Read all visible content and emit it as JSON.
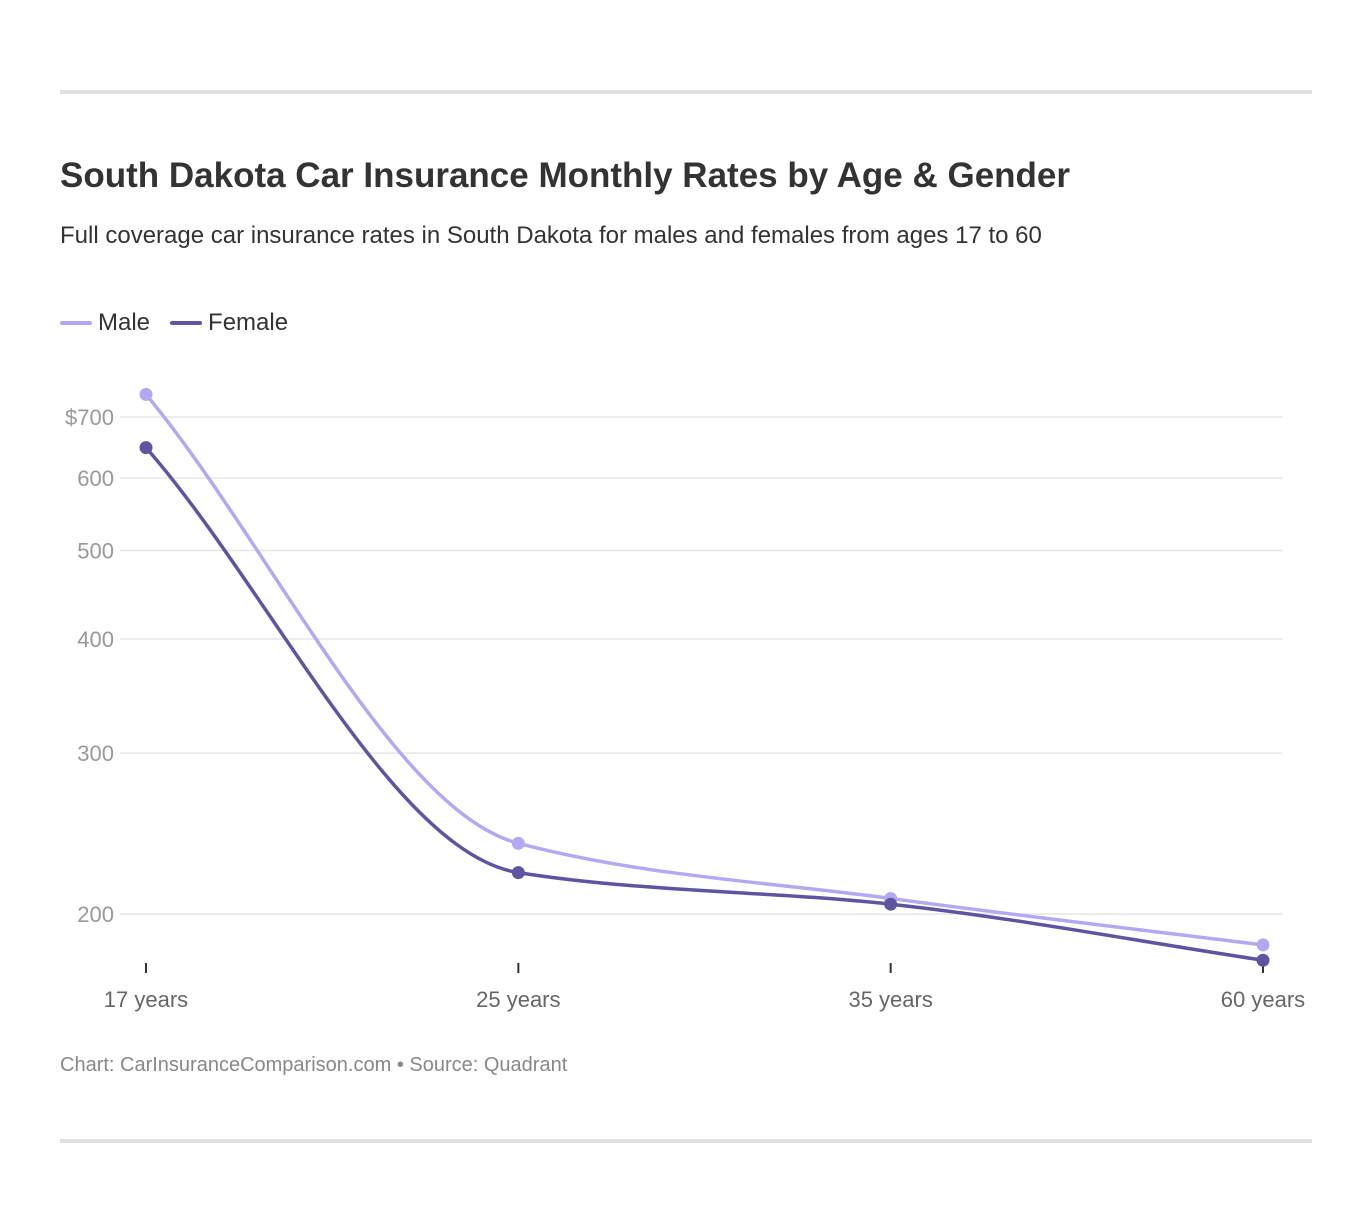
{
  "title": "South Dakota Car Insurance Monthly Rates by Age & Gender",
  "subtitle": "Full coverage car insurance rates in South Dakota for males and females from ages 17 to 60",
  "footer": {
    "chart_credit": "Chart: CarInsuranceComparison.com",
    "separator": "•",
    "source": "Source: Quadrant"
  },
  "colors": {
    "male": "#b3a8f2",
    "female": "#5e55a0",
    "grid": "#e6e6e6",
    "rule": "#e0e0e0"
  },
  "chart_data": {
    "type": "line",
    "title": "South Dakota Car Insurance Monthly Rates by Age & Gender",
    "subtitle": "Full coverage car insurance rates in South Dakota for males and females from ages 17 to 60",
    "xlabel": "",
    "ylabel": "",
    "categories": [
      "17 years",
      "25 years",
      "35 years",
      "60 years"
    ],
    "y_scale": "log",
    "y_ticks": [
      200,
      300,
      400,
      500,
      600,
      700
    ],
    "y_tick_labels": [
      "200",
      "300",
      "400",
      "500",
      "600",
      "$700"
    ],
    "ylim": [
      180,
      750
    ],
    "grid": true,
    "legend_position": "top-left",
    "series": [
      {
        "name": "Male",
        "color": "#b3a8f2",
        "values": [
          741,
          239,
          208,
          185
        ]
      },
      {
        "name": "Female",
        "color": "#5e55a0",
        "values": [
          648,
          222,
          205,
          178
        ]
      }
    ]
  }
}
